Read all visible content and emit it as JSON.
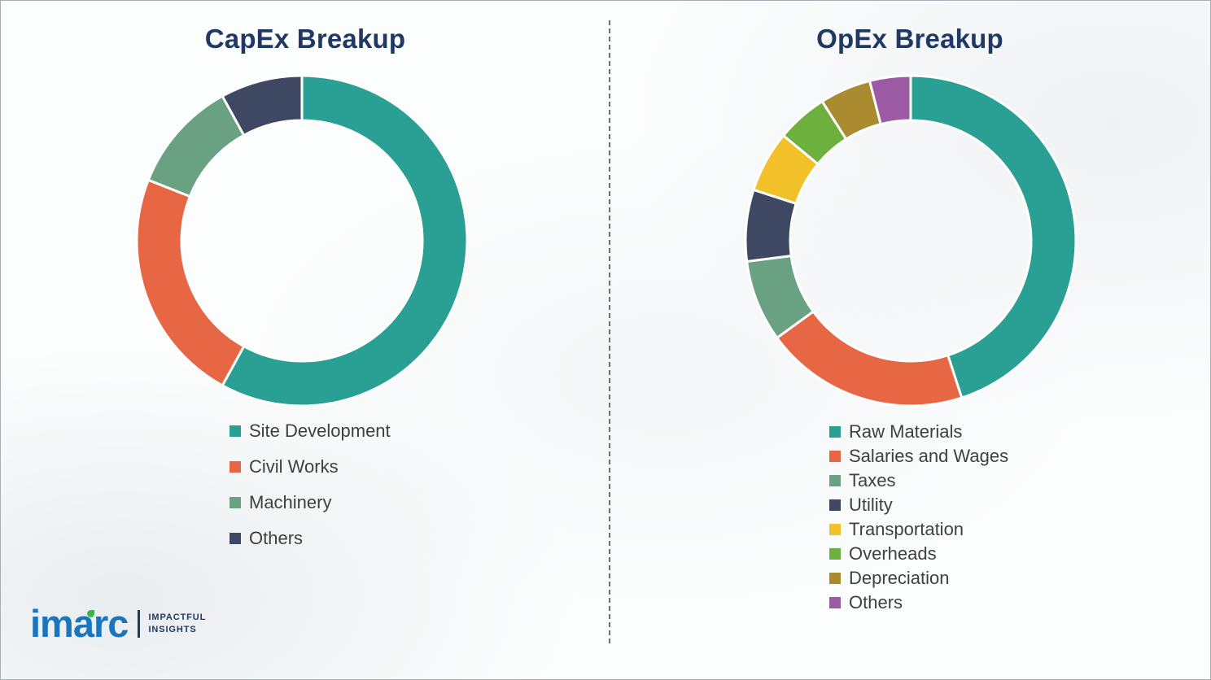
{
  "chart_data": [
    {
      "type": "pie",
      "subtype": "donut",
      "title": "CapEx Breakup",
      "labels": [
        "Site Development",
        "Civil Works",
        "Machinery",
        "Others"
      ],
      "values": [
        58,
        23,
        11,
        8
      ],
      "colors": [
        "#2AA094",
        "#E76744",
        "#69A182",
        "#3F4862"
      ],
      "start_angle_deg": 0,
      "direction": "clockwise",
      "legend_position": "bottom-left",
      "title_color": "#1F3864"
    },
    {
      "type": "pie",
      "subtype": "donut",
      "title": "OpEx Breakup",
      "labels": [
        "Raw Materials",
        "Salaries and Wages",
        "Taxes",
        "Utility",
        "Transportation",
        "Overheads",
        "Depreciation",
        "Others"
      ],
      "values": [
        45,
        20,
        8,
        7,
        6,
        5,
        5,
        4
      ],
      "colors": [
        "#2AA094",
        "#E76744",
        "#69A182",
        "#3F4862",
        "#F2C029",
        "#6EB03E",
        "#AA8B2F",
        "#9C59A4"
      ],
      "start_angle_deg": 0,
      "direction": "clockwise",
      "legend_position": "bottom",
      "title_color": "#1F3864"
    }
  ],
  "logo": {
    "brand_prefix": "im",
    "brand_accent": "a",
    "brand_suffix": "rc",
    "tagline_line1": "IMPACTFUL",
    "tagline_line2": "INSIGHTS",
    "brand_color": "#1B75BC",
    "tagline_color": "#1F3864"
  }
}
